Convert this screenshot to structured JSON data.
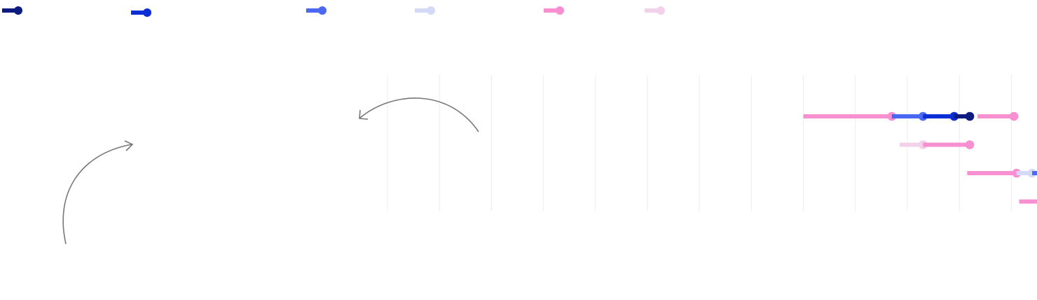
{
  "chart_data": {
    "type": "lollipop-range",
    "title": "",
    "xlabel": "",
    "ylabel": "",
    "grid": true,
    "legend_placement": "top-left",
    "x_scale": {
      "gridline_count": 13
    },
    "series": [
      {
        "color": "#0B1B7F"
      },
      {
        "color": "#0A2ED6"
      },
      {
        "color": "#4A68F2"
      },
      {
        "color": "#D3D9F7"
      },
      {
        "color": "#F78FD0"
      },
      {
        "color": "#F1D2EA"
      }
    ],
    "rows": [
      {
        "segments": [
          {
            "series": 4,
            "start": 8.0,
            "end": 9.7
          },
          {
            "series": 2,
            "start": 9.7,
            "end": 10.3
          },
          {
            "series": 1,
            "start": 10.3,
            "end": 10.9
          },
          {
            "series": 0,
            "start": 10.9,
            "end": 11.2
          },
          {
            "series": 4,
            "start": 11.35,
            "end": 12.05
          }
        ]
      },
      {
        "segments": [
          {
            "series": 5,
            "start": 9.85,
            "end": 10.3
          },
          {
            "series": 4,
            "start": 10.3,
            "end": 11.2
          }
        ]
      },
      {
        "segments": [
          {
            "series": 4,
            "start": 11.15,
            "end": 12.1
          },
          {
            "series": 3,
            "start": 12.1,
            "end": 12.4
          },
          {
            "series": 2,
            "start": 12.4,
            "end": 13.05
          }
        ]
      },
      {
        "segments": [
          {
            "series": 4,
            "start": 12.15,
            "end": 13.05
          }
        ]
      }
    ]
  }
}
